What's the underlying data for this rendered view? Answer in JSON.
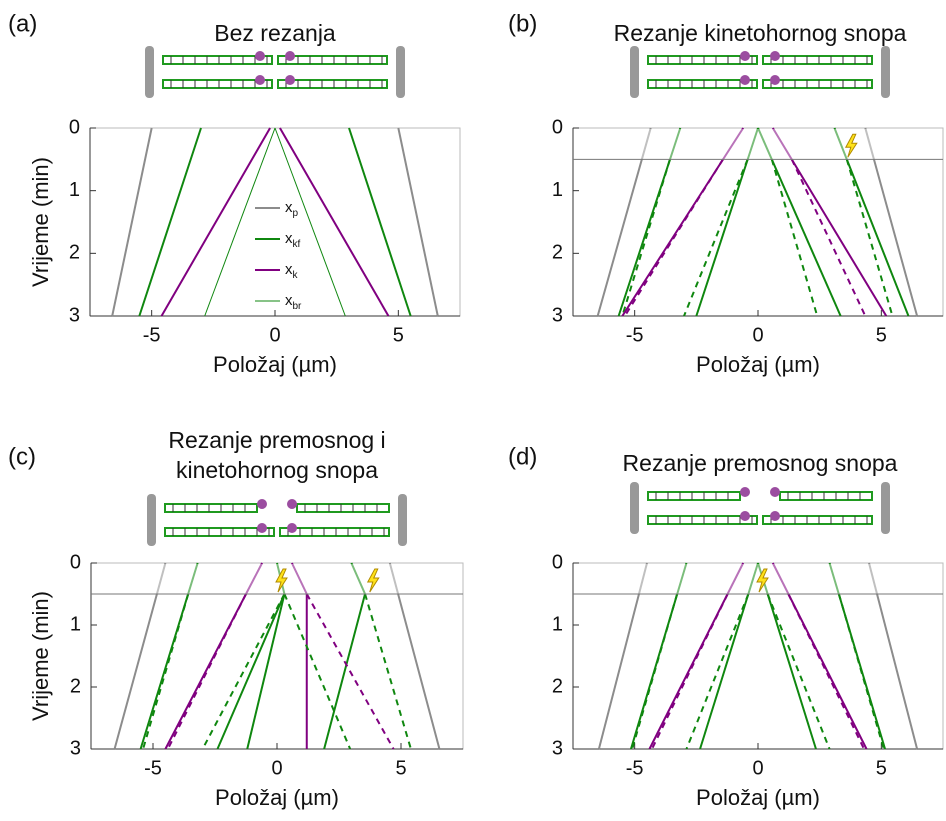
{
  "chart_data": [
    {
      "type": "line",
      "label": "(a)",
      "title": [
        "Bez rezanja"
      ],
      "xlabel": "Položaj (µm)",
      "ylabel": "Vrijeme (min)",
      "xlim": [
        -7.5,
        7.5
      ],
      "ylim": [
        0,
        3
      ],
      "xticks": [
        -5,
        0,
        5
      ],
      "yticks": [
        0,
        1,
        2,
        3
      ],
      "legend": true,
      "series": [
        {
          "name": "x",
          "subscript": "p",
          "color": "#8c8c8c",
          "width": 2,
          "x": [
            -5,
            -6.6
          ],
          "y": [
            0,
            3
          ]
        },
        {
          "color": "#8c8c8c",
          "width": 2,
          "x": [
            5,
            6.6
          ],
          "y": [
            0,
            3
          ]
        },
        {
          "name": "x",
          "subscript": "kf",
          "color": "#0f870f",
          "width": 2,
          "x": [
            -3,
            -5.5
          ],
          "y": [
            0,
            3
          ]
        },
        {
          "color": "#0f870f",
          "width": 2,
          "x": [
            3,
            5.5
          ],
          "y": [
            0,
            3
          ]
        },
        {
          "name": "x",
          "subscript": "k",
          "color": "#800080",
          "width": 2,
          "x": [
            -0.2,
            -4.6
          ],
          "y": [
            0,
            3
          ]
        },
        {
          "color": "#800080",
          "width": 2,
          "x": [
            0.2,
            4.6
          ],
          "y": [
            0,
            3
          ]
        },
        {
          "name": "x",
          "subscript": "br",
          "color": "#0f870f",
          "width": 1,
          "x": [
            0,
            -2.85
          ],
          "y": [
            0,
            3
          ]
        },
        {
          "color": "#0f870f",
          "width": 1,
          "x": [
            0,
            2.85
          ],
          "y": [
            0,
            3
          ]
        }
      ]
    },
    {
      "type": "line",
      "label": "(b)",
      "title": [
        "Rezanje kinetohornog snopa"
      ],
      "xlabel": "Položaj (µm)",
      "xlim": [
        -7.5,
        7.5
      ],
      "ylim": [
        0,
        3
      ],
      "xticks": [
        -5,
        0,
        5
      ],
      "yticks": [
        0,
        1,
        2,
        3
      ],
      "cut_time": 0.5,
      "cut_x": [
        3.6
      ],
      "series": [
        {
          "color": "#8c8c8c",
          "width": 2,
          "x": [
            -4.35,
            -6.5
          ],
          "y": [
            0,
            3
          ]
        },
        {
          "color": "#8c8c8c",
          "width": 2,
          "x": [
            4.35,
            6.45
          ],
          "y": [
            0,
            3
          ]
        },
        {
          "color": "#0f870f",
          "width": 2,
          "x": [
            -3.15,
            -5.65
          ],
          "y": [
            0,
            3
          ]
        },
        {
          "color": "#0f870f",
          "width": 2,
          "dash": true,
          "x": [
            -3.57,
            -5.5
          ],
          "y": [
            0.5,
            3
          ]
        },
        {
          "color": "#0f870f",
          "width": 2,
          "x": [
            3.1,
            3.6,
            6.1
          ],
          "y": [
            0,
            0.5,
            3
          ]
        },
        {
          "color": "#0f870f",
          "width": 2,
          "dash": true,
          "x": [
            3.6,
            5.45
          ],
          "y": [
            0.5,
            3
          ]
        },
        {
          "color": "#800080",
          "width": 2,
          "x": [
            -0.6,
            -5.5
          ],
          "y": [
            0,
            3
          ]
        },
        {
          "color": "#800080",
          "width": 2,
          "dash": true,
          "x": [
            -1.42,
            -5.4
          ],
          "y": [
            0.5,
            3
          ]
        },
        {
          "color": "#800080",
          "width": 2,
          "x": [
            0.6,
            5.2
          ],
          "y": [
            0,
            3
          ]
        },
        {
          "color": "#800080",
          "width": 2,
          "dash": true,
          "x": [
            1.37,
            4.35
          ],
          "y": [
            0.5,
            3
          ]
        },
        {
          "color": "#0f870f",
          "width": 2,
          "x": [
            0,
            -2.5
          ],
          "y": [
            0,
            3
          ]
        },
        {
          "color": "#0f870f",
          "width": 2,
          "dash": true,
          "x": [
            -0.42,
            -3
          ],
          "y": [
            0.5,
            3
          ]
        },
        {
          "color": "#0f870f",
          "width": 2,
          "x": [
            0,
            3.35
          ],
          "y": [
            0,
            3
          ]
        },
        {
          "color": "#0f870f",
          "width": 2,
          "dash": true,
          "x": [
            0.56,
            2.4
          ],
          "y": [
            0.5,
            3
          ]
        }
      ]
    },
    {
      "type": "line",
      "label": "(c)",
      "title": [
        "Rezanje premosnog i",
        "kinetohornog snopa"
      ],
      "xlabel": "Položaj (µm)",
      "ylabel": "Vrijeme (min)",
      "xlim": [
        -7.5,
        7.5
      ],
      "ylim": [
        0,
        3
      ],
      "xticks": [
        -5,
        0,
        5
      ],
      "yticks": [
        0,
        1,
        2,
        3
      ],
      "cut_time": 0.5,
      "cut_x": [
        0,
        3.7
      ],
      "series": [
        {
          "color": "#8c8c8c",
          "width": 2,
          "x": [
            -4.5,
            -6.55
          ],
          "y": [
            0,
            3
          ]
        },
        {
          "color": "#8c8c8c",
          "width": 2,
          "x": [
            4.55,
            6.55
          ],
          "y": [
            0,
            3
          ]
        },
        {
          "color": "#0f870f",
          "width": 2,
          "x": [
            -3.2,
            -5.5
          ],
          "y": [
            0,
            3
          ]
        },
        {
          "color": "#0f870f",
          "width": 2,
          "dash": true,
          "x": [
            -3.58,
            -5.4
          ],
          "y": [
            0.5,
            3
          ]
        },
        {
          "color": "#0f870f",
          "width": 2,
          "x": [
            3,
            3.55,
            1.9
          ],
          "y": [
            0,
            0.5,
            3
          ]
        },
        {
          "color": "#0f870f",
          "width": 2,
          "dash": true,
          "x": [
            3.55,
            5.4
          ],
          "y": [
            0.5,
            3
          ]
        },
        {
          "color": "#800080",
          "width": 2,
          "x": [
            -0.6,
            -4.5
          ],
          "y": [
            0,
            3
          ]
        },
        {
          "color": "#800080",
          "width": 2,
          "dash": true,
          "x": [
            -1.25,
            -4.4
          ],
          "y": [
            0.5,
            3
          ]
        },
        {
          "color": "#800080",
          "width": 2,
          "x": [
            0.6,
            1.2,
            1.2
          ],
          "y": [
            0,
            0.5,
            3
          ]
        },
        {
          "color": "#800080",
          "width": 2,
          "dash": true,
          "x": [
            1.2,
            4.7
          ],
          "y": [
            0.5,
            3
          ]
        },
        {
          "color": "#0f870f",
          "width": 2,
          "x": [
            0,
            0.3,
            -2.4
          ],
          "y": [
            0,
            0.5,
            3
          ]
        },
        {
          "color": "#0f870f",
          "width": 2,
          "dash": true,
          "x": [
            0.3,
            -3
          ],
          "y": [
            0.5,
            3
          ]
        },
        {
          "color": "#0f870f",
          "width": 2,
          "x": [
            0.3,
            -1.2
          ],
          "y": [
            0.5,
            3
          ]
        },
        {
          "color": "#0f870f",
          "width": 2,
          "dash": true,
          "x": [
            0.3,
            2.95
          ],
          "y": [
            0.5,
            3
          ]
        }
      ]
    },
    {
      "type": "line",
      "label": "(d)",
      "title": [
        "Rezanje premosnog snopa"
      ],
      "xlabel": "Položaj (µm)",
      "xlim": [
        -7.5,
        7.5
      ],
      "ylim": [
        0,
        3
      ],
      "xticks": [
        -5,
        0,
        5
      ],
      "yticks": [
        0,
        1,
        2,
        3
      ],
      "cut_time": 0.5,
      "cut_x": [
        0
      ],
      "series": [
        {
          "color": "#8c8c8c",
          "width": 2,
          "x": [
            -4.5,
            -6.45
          ],
          "y": [
            0,
            3
          ]
        },
        {
          "color": "#8c8c8c",
          "width": 2,
          "x": [
            4.5,
            6.45
          ],
          "y": [
            0,
            3
          ]
        },
        {
          "color": "#0f870f",
          "width": 2,
          "x": [
            -2.9,
            -5.15
          ],
          "y": [
            0,
            3
          ]
        },
        {
          "color": "#0f870f",
          "width": 2,
          "dash": true,
          "x": [
            -3.28,
            -5.1
          ],
          "y": [
            0.5,
            3
          ]
        },
        {
          "color": "#0f870f",
          "width": 2,
          "x": [
            2.9,
            5.15
          ],
          "y": [
            0,
            3
          ]
        },
        {
          "color": "#0f870f",
          "width": 2,
          "dash": true,
          "x": [
            3.28,
            5.1
          ],
          "y": [
            0.5,
            3
          ]
        },
        {
          "color": "#800080",
          "width": 2,
          "x": [
            -0.6,
            -4.4
          ],
          "y": [
            0,
            3
          ]
        },
        {
          "color": "#800080",
          "width": 2,
          "dash": true,
          "x": [
            -1.23,
            -4.3
          ],
          "y": [
            0.5,
            3
          ]
        },
        {
          "color": "#800080",
          "width": 2,
          "x": [
            0.6,
            4.4
          ],
          "y": [
            0,
            3
          ]
        },
        {
          "color": "#800080",
          "width": 2,
          "dash": true,
          "x": [
            1.23,
            4.3
          ],
          "y": [
            0.5,
            3
          ]
        },
        {
          "color": "#0f870f",
          "width": 2,
          "x": [
            0,
            -2.35
          ],
          "y": [
            0,
            3
          ]
        },
        {
          "color": "#0f870f",
          "width": 2,
          "dash": true,
          "x": [
            -0.39,
            -2.9
          ],
          "y": [
            0.5,
            3
          ]
        },
        {
          "color": "#0f870f",
          "width": 2,
          "x": [
            0,
            2.35
          ],
          "y": [
            0,
            3
          ]
        },
        {
          "color": "#0f870f",
          "width": 2,
          "dash": true,
          "x": [
            0.39,
            2.9
          ],
          "y": [
            0.5,
            3
          ]
        }
      ]
    }
  ]
}
